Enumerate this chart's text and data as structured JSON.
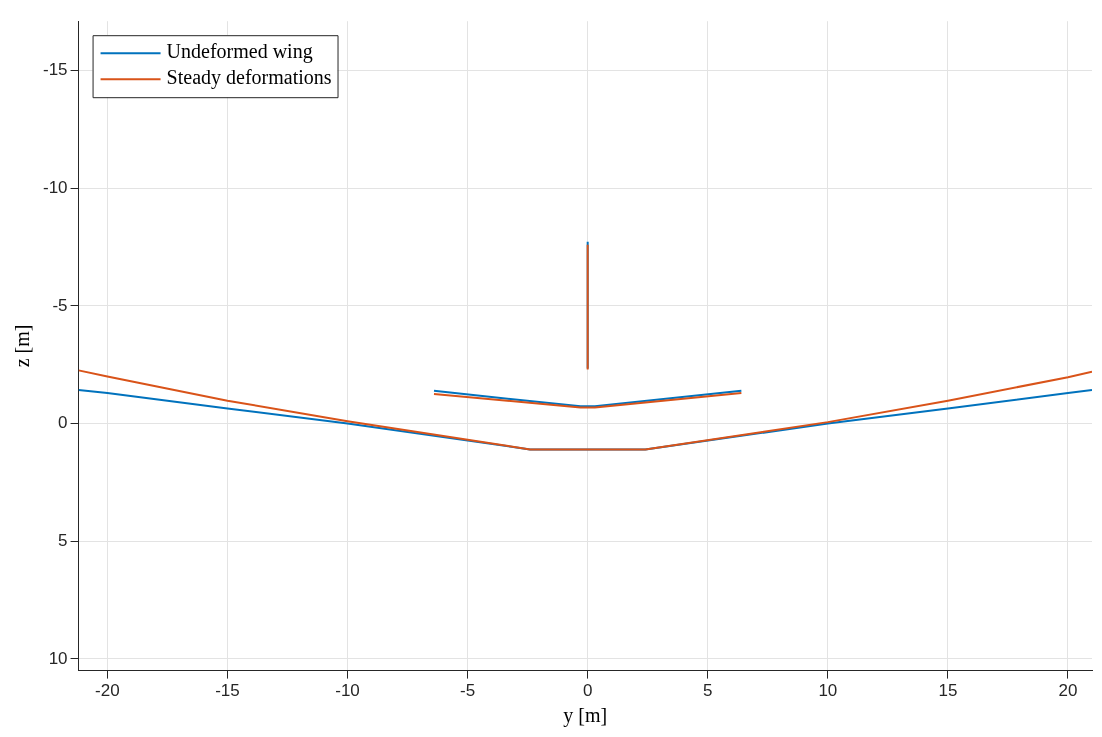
{
  "chart_data": {
    "type": "line",
    "xlabel": "y [m]",
    "ylabel": "z [m]",
    "xlim": [
      -21.2,
      21
    ],
    "ylim": [
      10.5,
      -17.1
    ],
    "xticks": [
      -20,
      -15,
      -10,
      -5,
      0,
      5,
      10,
      15,
      20
    ],
    "yticks": [
      -15,
      -10,
      -5,
      0,
      5,
      10
    ],
    "grid": true,
    "legend": "top left",
    "marker": "none",
    "line_style": "solid",
    "series": [
      {
        "name": "Undeformed wing",
        "color": "#0072bd",
        "x": [
          -21.2,
          -20,
          -15,
          -10,
          -2.4,
          2.4,
          10,
          15,
          20,
          21,
          null,
          -6.4,
          -0.3,
          0.3,
          6.4,
          null,
          0,
          0
        ],
        "values": [
          -1.43,
          -1.3,
          -0.64,
          0,
          1.1,
          1.1,
          0,
          -0.64,
          -1.3,
          -1.43,
          null,
          -1.39,
          -0.73,
          -0.73,
          -1.39,
          null,
          -2.34,
          -7.73
        ]
      },
      {
        "name": "Steady deformations",
        "color": "#d95319",
        "x": [
          -21.2,
          -20,
          -15,
          -10,
          -2.4,
          2.4,
          10,
          15,
          20,
          21,
          null,
          -6.4,
          -0.3,
          0.3,
          6.4,
          null,
          0,
          0
        ],
        "values": [
          -2.26,
          -2.0,
          -0.97,
          -0.1,
          1.1,
          1.1,
          -0.06,
          -0.97,
          -1.97,
          -2.2,
          null,
          -1.26,
          -0.68,
          -0.68,
          -1.3,
          null,
          -2.3,
          -7.6
        ]
      }
    ]
  }
}
